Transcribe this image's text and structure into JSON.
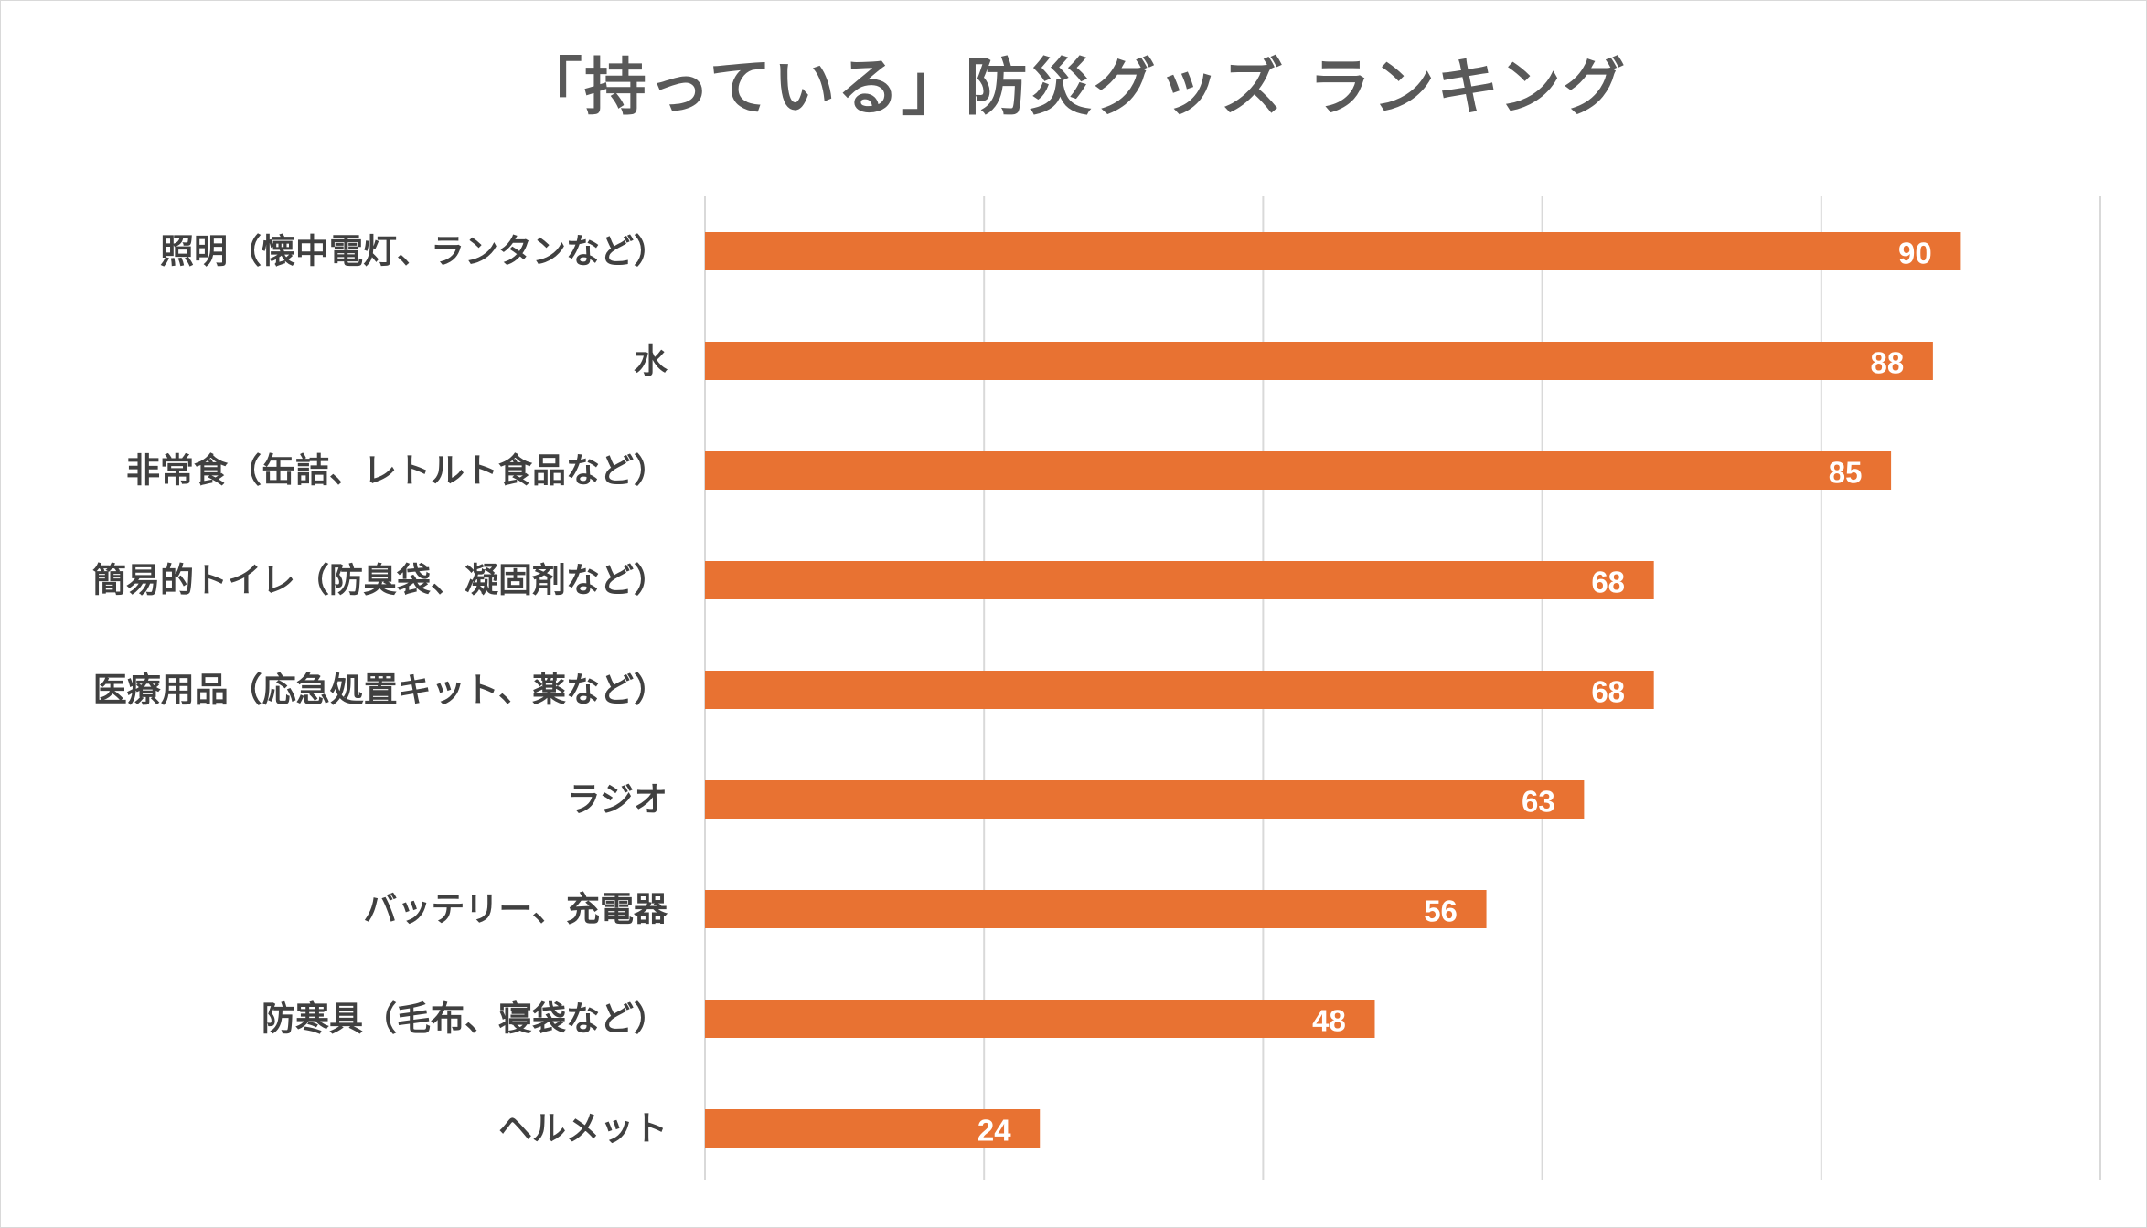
{
  "chart_data": {
    "type": "bar",
    "orientation": "horizontal",
    "title": "「持っている」防災グッズ ランキング",
    "categories": [
      "照明（懐中電灯、ランタンなど）",
      "水",
      "非常食（缶詰、レトルト食品など）",
      "簡易的トイレ（防臭袋、凝固剤など）",
      "医療用品（応急処置キット、薬など）",
      "ラジオ",
      "バッテリー、充電器",
      "防寒具（毛布、寝袋など）",
      "ヘルメット"
    ],
    "values": [
      90,
      88,
      85,
      68,
      68,
      63,
      56,
      48,
      24
    ],
    "xlim": [
      0,
      100
    ],
    "x_gridlines": [
      0,
      20,
      40,
      60,
      80,
      100
    ],
    "grid": true,
    "legend": false,
    "data_labels": true,
    "colors": {
      "bar": "#E87232",
      "grid": "#d9d9d9",
      "label_text": "#404040",
      "title_text": "#595959",
      "value_text": "#ffffff"
    }
  }
}
